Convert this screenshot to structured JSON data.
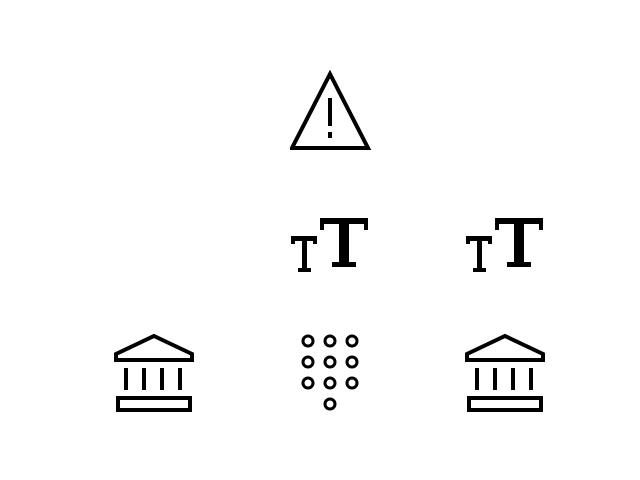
{
  "colors": {
    "background": "#ffffff",
    "icon": "#000000"
  },
  "icons": [
    {
      "id": "warning",
      "icon": "warning-icon"
    },
    {
      "id": "text-size-1",
      "icon": "text-size-icon"
    },
    {
      "id": "text-size-2",
      "icon": "text-size-icon"
    },
    {
      "id": "bank-1",
      "icon": "bank-icon"
    },
    {
      "id": "dialpad",
      "icon": "dialpad-icon"
    },
    {
      "id": "bank-2",
      "icon": "bank-icon"
    }
  ]
}
